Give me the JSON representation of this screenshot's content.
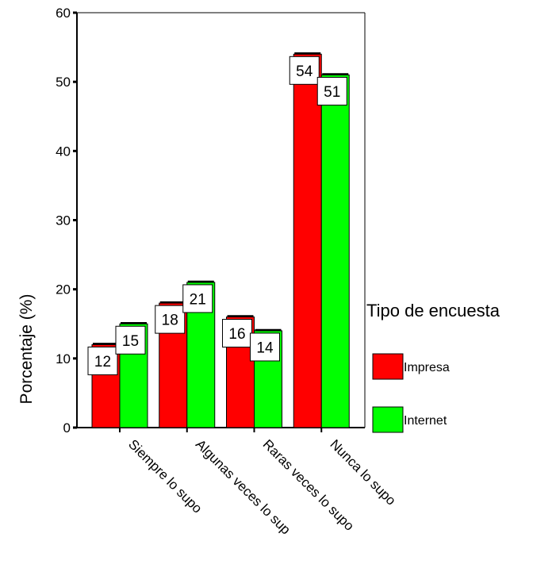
{
  "chart_data": {
    "type": "bar",
    "title": "",
    "xlabel": "",
    "ylabel": "Porcentaje  (%)",
    "ylim": [
      0,
      60
    ],
    "yticks": [
      0,
      10,
      20,
      30,
      40,
      50,
      60
    ],
    "grid": false,
    "categories": [
      "Siempre lo supo",
      "Algunas veces lo sup",
      "Raras veces lo supo",
      "Nunca lo supo"
    ],
    "legend": {
      "title": "Tipo de encuesta",
      "placement": "right"
    },
    "series": [
      {
        "name": "Impresa",
        "color": "#ff0000",
        "values": [
          12,
          18,
          16,
          54
        ],
        "labels": [
          "12",
          "18",
          "16",
          "54"
        ]
      },
      {
        "name": "Internet",
        "color": "#00ff00",
        "values": [
          15,
          21,
          14,
          51
        ],
        "labels": [
          "15",
          "21",
          "14",
          "51"
        ]
      }
    ]
  }
}
